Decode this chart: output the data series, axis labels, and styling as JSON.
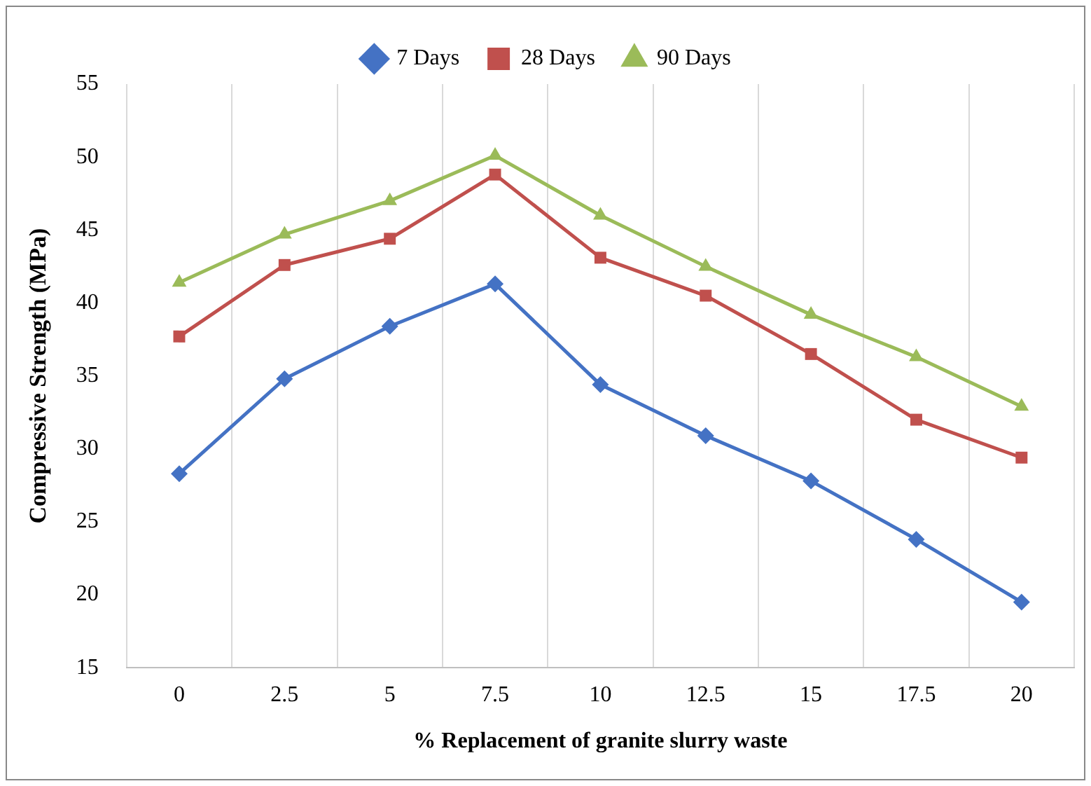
{
  "chart_data": {
    "type": "line",
    "xlabel": "% Replacement of granite slurry waste",
    "ylabel": "Compressive Strength (MPa)",
    "categories": [
      "0",
      "2.5",
      "5",
      "7.5",
      "10",
      "12.5",
      "15",
      "17.5",
      "20"
    ],
    "series": [
      {
        "name": "7 Days",
        "color": "#4472c4",
        "marker": "diamond",
        "values": [
          28.3,
          34.8,
          38.4,
          41.3,
          34.4,
          30.9,
          27.8,
          23.8,
          19.5
        ]
      },
      {
        "name": "28 Days",
        "color": "#c0504d",
        "marker": "square",
        "values": [
          37.7,
          42.6,
          44.4,
          48.8,
          43.1,
          40.5,
          36.5,
          32.0,
          29.4
        ]
      },
      {
        "name": "90 Days",
        "color": "#9bbb59",
        "marker": "triangle",
        "values": [
          41.4,
          44.7,
          47.0,
          50.1,
          46.0,
          42.5,
          39.2,
          36.3,
          32.9
        ]
      }
    ],
    "ylim": [
      15,
      55
    ],
    "yticks": [
      15,
      20,
      25,
      30,
      35,
      40,
      45,
      50,
      55
    ],
    "grid": "x",
    "legend": "top",
    "line_style": "solid"
  }
}
